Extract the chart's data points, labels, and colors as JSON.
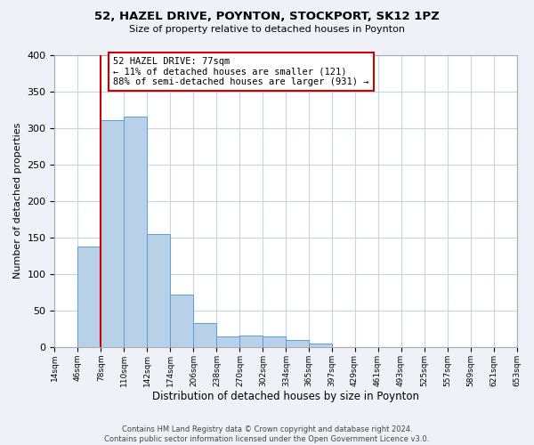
{
  "title1": "52, HAZEL DRIVE, POYNTON, STOCKPORT, SK12 1PZ",
  "title2": "Size of property relative to detached houses in Poynton",
  "xlabel": "Distribution of detached houses by size in Poynton",
  "ylabel": "Number of detached properties",
  "bin_edges": [
    14,
    46,
    78,
    110,
    142,
    174,
    206,
    238,
    270,
    302,
    334,
    365,
    397,
    429,
    461,
    493,
    525,
    557,
    589,
    621,
    653
  ],
  "bin_values": [
    0,
    137,
    310,
    315,
    155,
    72,
    33,
    14,
    16,
    14,
    10,
    5,
    0,
    0,
    0,
    0,
    0,
    0,
    0,
    0
  ],
  "bar_color": "#b8d0e8",
  "bar_edge_color": "#5a9fd4",
  "reference_line_x": 78,
  "reference_line_color": "#cc0000",
  "annotation_text": "52 HAZEL DRIVE: 77sqm\n← 11% of detached houses are smaller (121)\n88% of semi-detached houses are larger (931) →",
  "annotation_box_color": "#ffffff",
  "annotation_box_edge": "#cc0000",
  "ylim": [
    0,
    400
  ],
  "yticks": [
    0,
    50,
    100,
    150,
    200,
    250,
    300,
    350,
    400
  ],
  "footer_text": "Contains HM Land Registry data © Crown copyright and database right 2024.\nContains public sector information licensed under the Open Government Licence v3.0.",
  "bg_color": "#eef2f8",
  "plot_bg_color": "#ffffff",
  "grid_color": "#c8d4e4"
}
